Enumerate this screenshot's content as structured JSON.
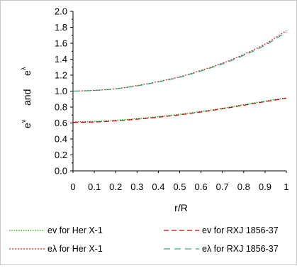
{
  "chart_data": {
    "type": "line",
    "xlabel": "r/R",
    "ylabel_parts": [
      "e",
      "ν",
      "and",
      "e",
      "λ"
    ],
    "xlim": [
      0,
      1
    ],
    "ylim": [
      0,
      2.0
    ],
    "x_ticks": [
      "0",
      "0.1",
      "0.2",
      "0.3",
      "0.4",
      "0.5",
      "0.6",
      "0.7",
      "0.8",
      "0.9",
      "1"
    ],
    "y_ticks": [
      "0.0",
      "0.2",
      "0.4",
      "0.6",
      "0.8",
      "1.0",
      "1.2",
      "1.4",
      "1.6",
      "1.8",
      "2.0"
    ],
    "grid": false,
    "legend_position": "bottom",
    "x": [
      0,
      0.1,
      0.2,
      0.3,
      0.4,
      0.5,
      0.6,
      0.7,
      0.8,
      0.9,
      1.0
    ],
    "series": [
      {
        "name": "ev for  Her X-1",
        "color": "#00a000",
        "dash": "1.5,1.8",
        "values": [
          0.615,
          0.62,
          0.635,
          0.655,
          0.68,
          0.71,
          0.745,
          0.785,
          0.83,
          0.875,
          0.915
        ]
      },
      {
        "name": "ev for RXJ 1856-37",
        "color": "#cc0000",
        "dash": "7,4",
        "values": [
          0.607,
          0.612,
          0.627,
          0.648,
          0.673,
          0.703,
          0.738,
          0.778,
          0.823,
          0.868,
          0.91
        ]
      },
      {
        "name": "eλ for Her X-1",
        "color": "#ee1111",
        "dash": "2,2",
        "values": [
          1.0,
          1.01,
          1.03,
          1.07,
          1.12,
          1.18,
          1.26,
          1.35,
          1.46,
          1.59,
          1.76
        ]
      },
      {
        "name": "eλ for RXJ 1856-37",
        "color": "#20b070",
        "dash": "9,6",
        "values": [
          1.0,
          1.008,
          1.028,
          1.065,
          1.115,
          1.173,
          1.252,
          1.34,
          1.448,
          1.575,
          1.74
        ]
      }
    ]
  }
}
